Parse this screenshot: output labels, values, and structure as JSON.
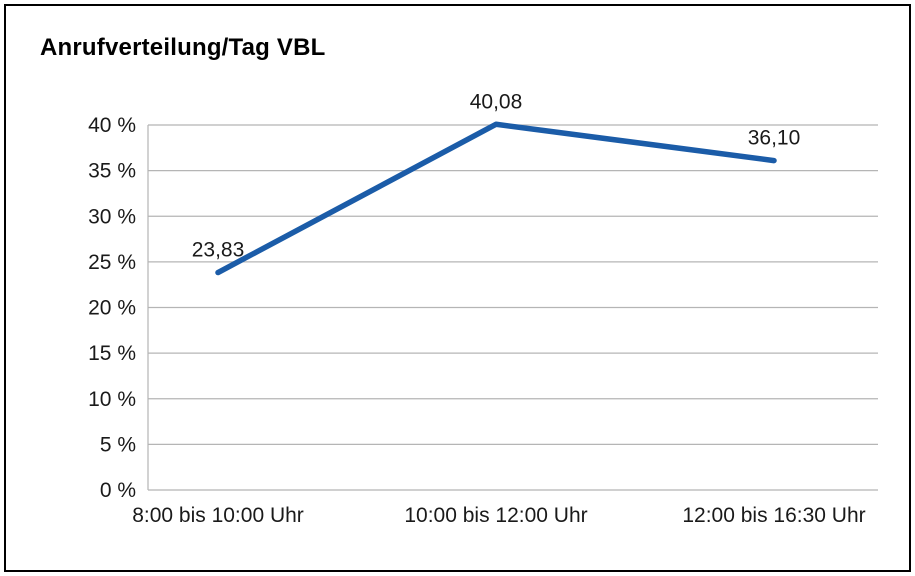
{
  "chart": {
    "colors": {
      "line": "#1b5ca8",
      "grid": "#b5b5b5",
      "axis": "#b5b5b5",
      "text": "#1a1a1a",
      "frame_border": "#000000",
      "background": "#ffffff"
    }
  },
  "chart_data": {
    "type": "line",
    "title": "Anrufverteilung/Tag VBL",
    "categories": [
      "8:00 bis 10:00 Uhr",
      "10:00 bis 12:00 Uhr",
      "12:00 bis 16:30 Uhr"
    ],
    "values": [
      23.83,
      40.08,
      36.1
    ],
    "value_labels": [
      "23,83",
      "40,08",
      "36,10"
    ],
    "xlabel": "",
    "ylabel": "",
    "ylim": [
      0,
      40
    ],
    "ytick_step": 5,
    "ytick_labels": [
      "0 %",
      "5 %",
      "10 %",
      "15 %",
      "20 %",
      "25 %",
      "30 %",
      "35 %",
      "40 %"
    ],
    "grid": true,
    "legend": false
  }
}
